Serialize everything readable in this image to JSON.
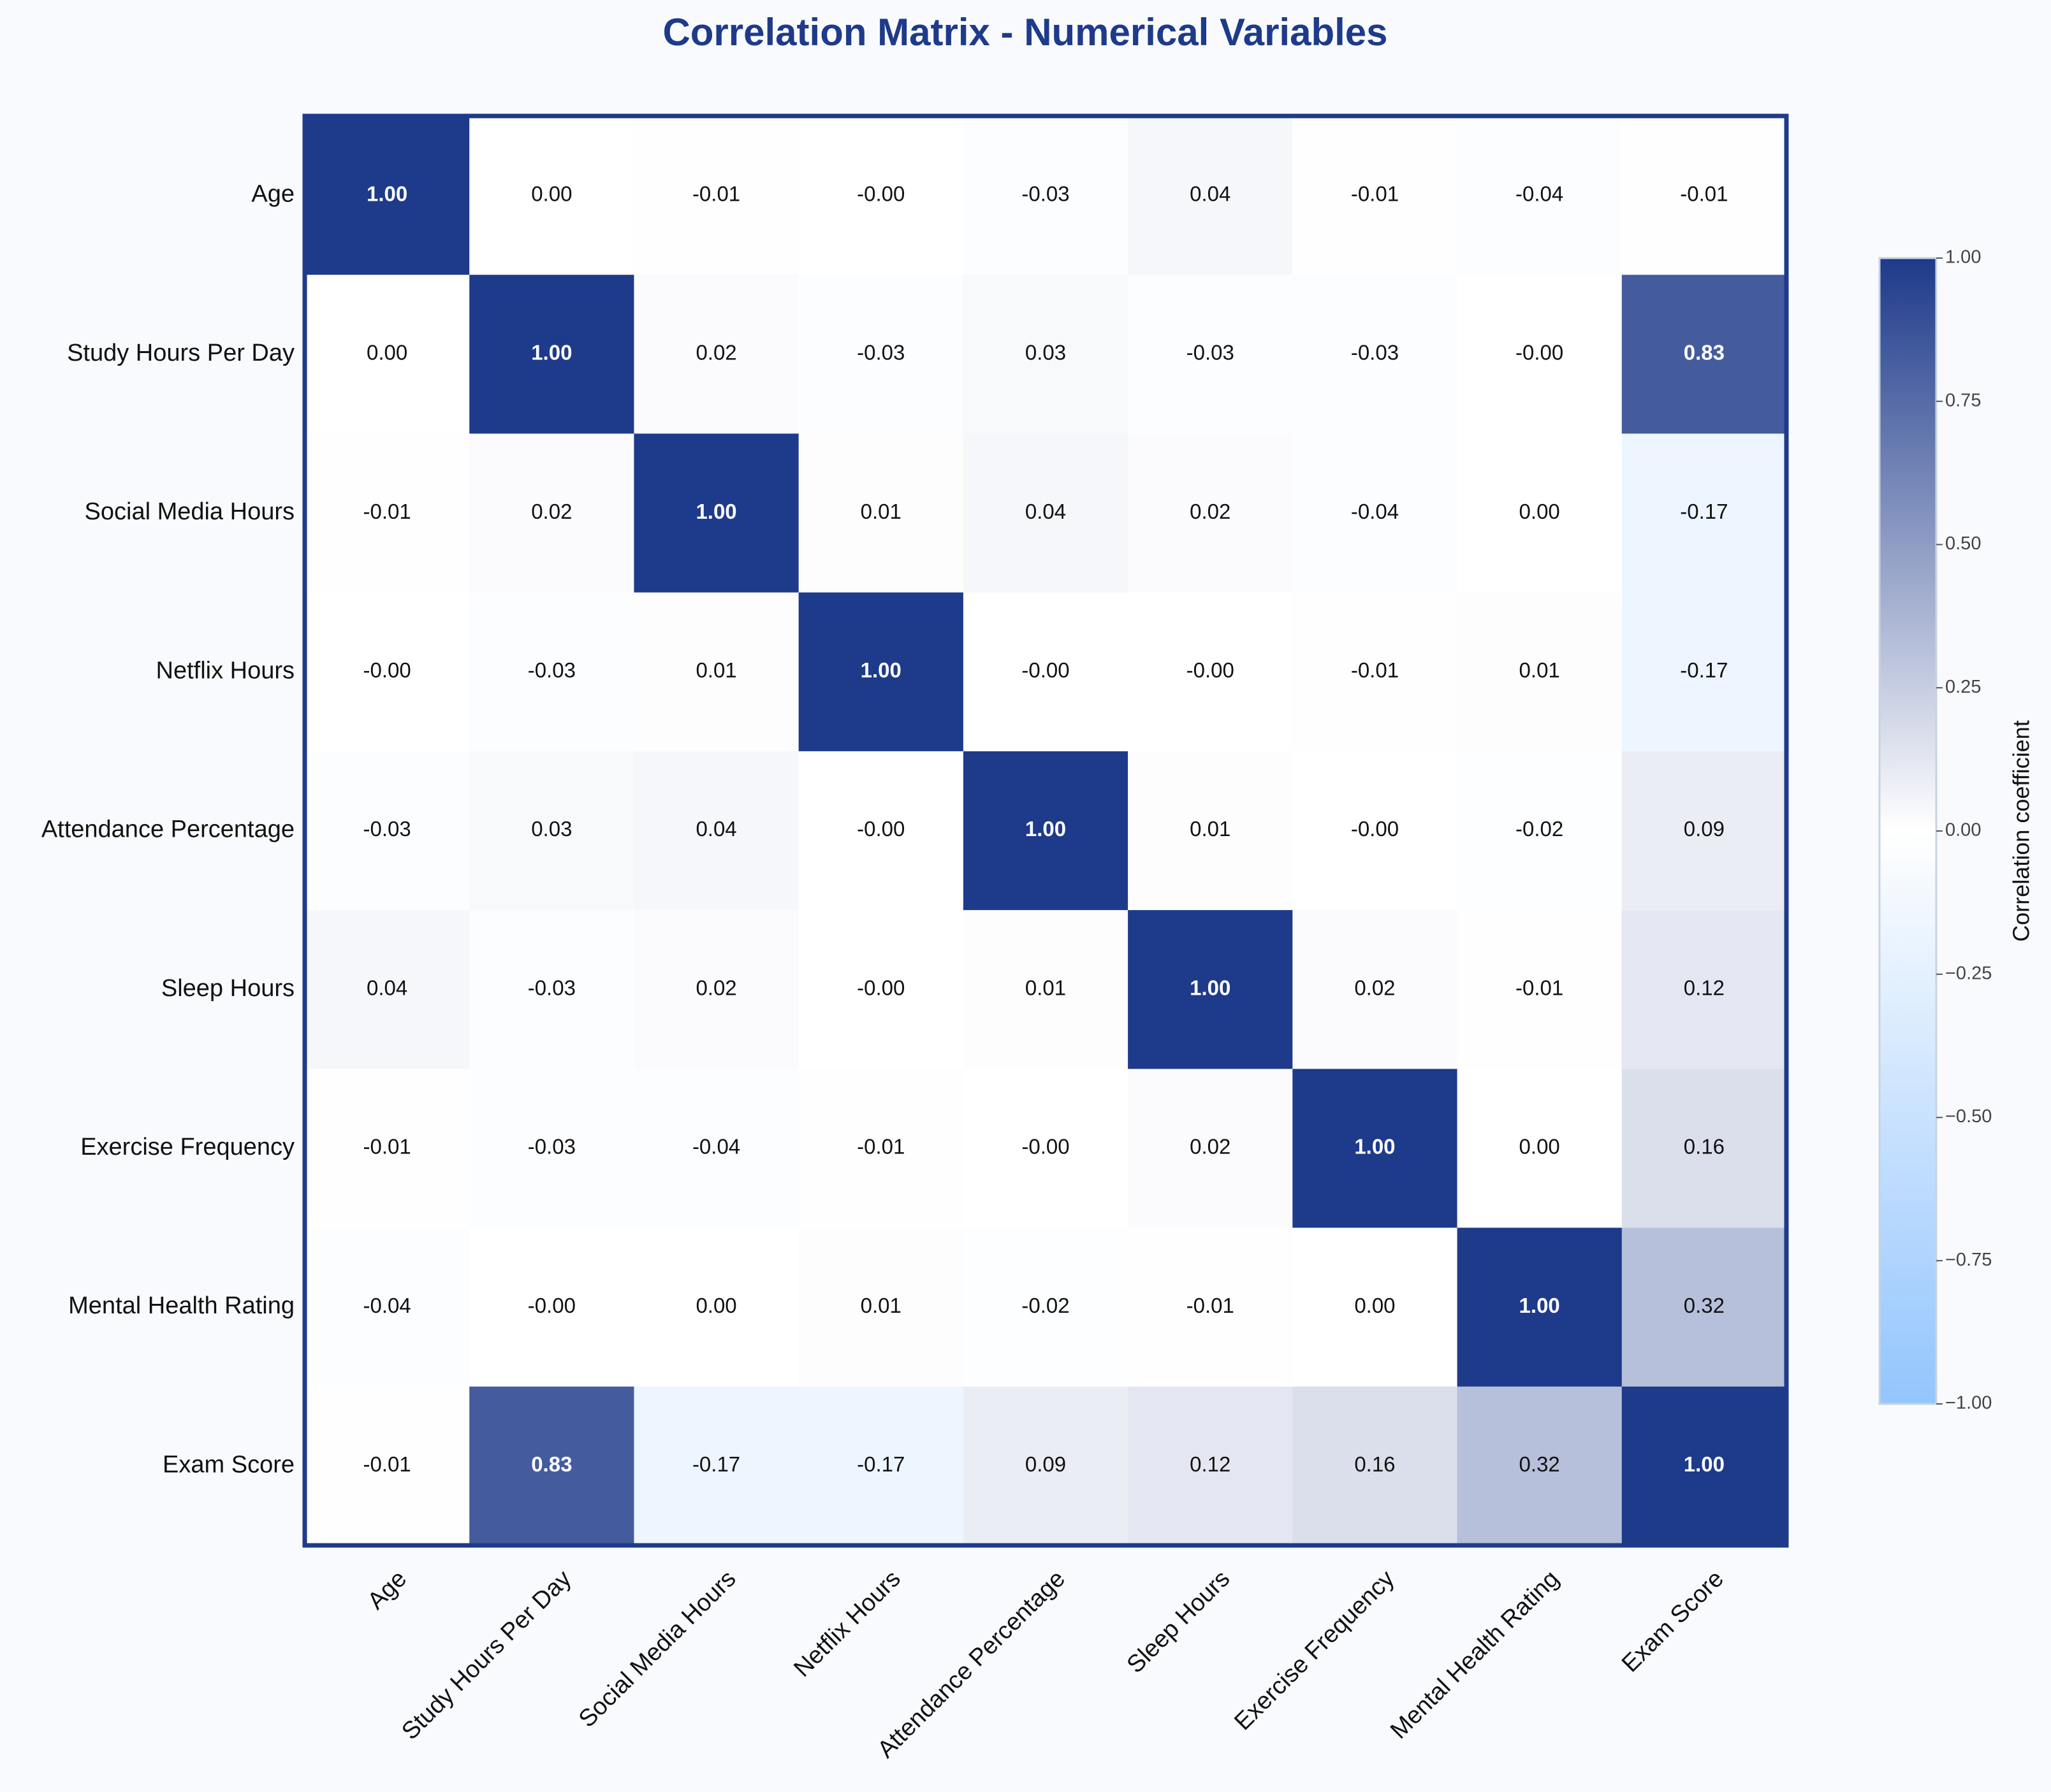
{
  "chart_data": {
    "type": "heatmap",
    "title": "Correlation Matrix - Numerical Variables",
    "variables": [
      "Age",
      "Study Hours Per Day",
      "Social Media Hours",
      "Netflix Hours",
      "Attendance Percentage",
      "Sleep Hours",
      "Exercise Frequency",
      "Mental Health Rating",
      "Exam Score"
    ],
    "matrix": [
      [
        "1.00",
        "0.00",
        "-0.01",
        "-0.00",
        "-0.03",
        "0.04",
        "-0.01",
        "-0.04",
        "-0.01"
      ],
      [
        "0.00",
        "1.00",
        "0.02",
        "-0.03",
        "0.03",
        "-0.03",
        "-0.03",
        "-0.00",
        "0.83"
      ],
      [
        "-0.01",
        "0.02",
        "1.00",
        "0.01",
        "0.04",
        "0.02",
        "-0.04",
        "0.00",
        "-0.17"
      ],
      [
        "-0.00",
        "-0.03",
        "0.01",
        "1.00",
        "-0.00",
        "-0.00",
        "-0.01",
        "0.01",
        "-0.17"
      ],
      [
        "-0.03",
        "0.03",
        "0.04",
        "-0.00",
        "1.00",
        "0.01",
        "-0.00",
        "-0.02",
        "0.09"
      ],
      [
        "0.04",
        "-0.03",
        "0.02",
        "-0.00",
        "0.01",
        "1.00",
        "0.02",
        "-0.01",
        "0.12"
      ],
      [
        "-0.01",
        "-0.03",
        "-0.04",
        "-0.01",
        "-0.00",
        "0.02",
        "1.00",
        "0.00",
        "0.16"
      ],
      [
        "-0.04",
        "-0.00",
        "0.00",
        "0.01",
        "-0.02",
        "-0.01",
        "0.00",
        "1.00",
        "0.32"
      ],
      [
        "-0.01",
        "0.83",
        "-0.17",
        "-0.17",
        "0.09",
        "0.12",
        "0.16",
        "0.32",
        "1.00"
      ]
    ],
    "colorbar": {
      "label": "Correlation coefficient",
      "range": [
        -1,
        1
      ],
      "ticks": [
        "1.00",
        "0.75",
        "0.50",
        "0.25",
        "0.00",
        "−0.25",
        "−0.50",
        "−0.75",
        "−1.00"
      ]
    },
    "colors": {
      "positive_max": "#1e3a8a",
      "zero": "#ffffff",
      "negative_max": "#93c5fd",
      "frame": "#1e3a8a",
      "title": "#1e3a8a",
      "text_dark": "#111111",
      "text_light": "#ffffff"
    },
    "grid": false
  }
}
